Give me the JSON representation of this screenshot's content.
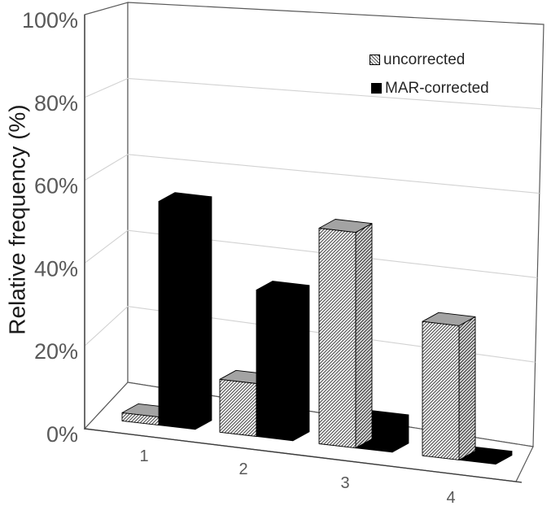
{
  "figure": {
    "kind": "3d-column-chart",
    "background": "#ffffff"
  },
  "chart_data": {
    "type": "bar",
    "projection": "3d-perspective",
    "title": "",
    "xlabel": "",
    "ylabel": "Relative frequency (%)",
    "categories": [
      "1",
      "2",
      "3",
      "4"
    ],
    "series": [
      {
        "name": "uncorrected",
        "style": "diagonal-hatch",
        "values": [
          2,
          13,
          53,
          33
        ]
      },
      {
        "name": "MAR-corrected",
        "style": "solid-black",
        "values": [
          55,
          36,
          7,
          1
        ]
      }
    ],
    "ylim": [
      0,
      100
    ],
    "ytick_step": 20,
    "yticks": [
      "0%",
      "20%",
      "40%",
      "60%",
      "80%",
      "100%"
    ],
    "grid": true,
    "legend_position": "top-right",
    "colors": {
      "solid_series": "#000000",
      "hatch_line": "#474747",
      "hatch_bg": "#f7f7f7",
      "hatch_side_line": "#2e2e2e",
      "hatch_side_bg": "#dcdcdc",
      "bar_top_gray": "#a3a3a3",
      "grid_line": "#d2d2d2",
      "wall_edge": "#5a5a5a",
      "axis_line": "#3d3d3d",
      "tick_text": "#595959",
      "title_text": "#1a1a1a",
      "legend_text": "#262626",
      "wall_fill": "#ffffff"
    }
  }
}
